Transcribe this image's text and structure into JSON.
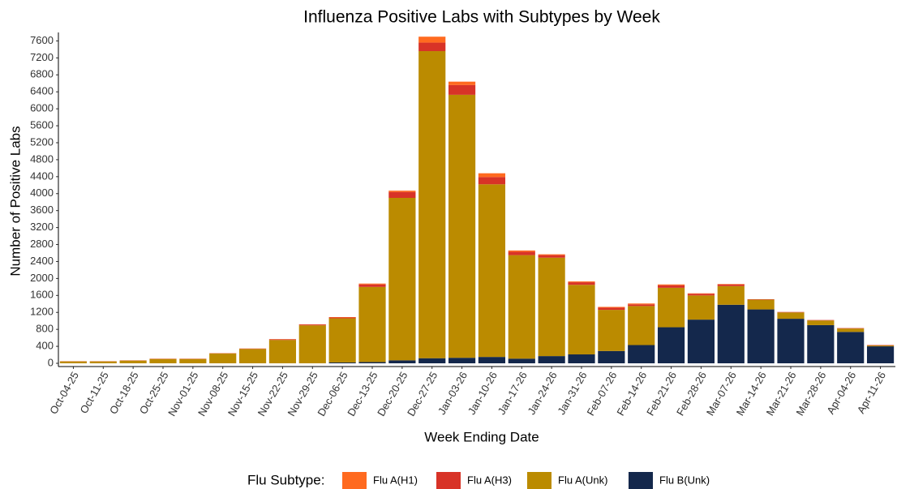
{
  "chart_data": {
    "type": "stacked_bar",
    "title": "Influenza Positive Labs with Subtypes by Week",
    "x_label": "Week Ending Date",
    "y_label": "Number of Positive Labs",
    "legend_title": "Flu Subtype:",
    "legend_position": "bottom",
    "grid": false,
    "categories": [
      "Oct-04-25",
      "Oct-11-25",
      "Oct-18-25",
      "Oct-25-25",
      "Nov-01-25",
      "Nov-08-25",
      "Nov-15-25",
      "Nov-22-25",
      "Nov-29-25",
      "Dec-06-25",
      "Dec-13-25",
      "Dec-20-25",
      "Dec-27-25",
      "Jan-03-26",
      "Jan-10-26",
      "Jan-17-26",
      "Jan-24-26",
      "Jan-31-26",
      "Feb-07-26",
      "Feb-14-26",
      "Feb-21-26",
      "Feb-28-26",
      "Mar-07-26",
      "Mar-14-26",
      "Mar-21-26",
      "Mar-28-26",
      "Apr-04-26",
      "Apr-11-26"
    ],
    "series": [
      {
        "name": "Flu A(H1)",
        "color": "#ff6a1f",
        "values": [
          2,
          2,
          2,
          3,
          3,
          3,
          3,
          5,
          5,
          10,
          20,
          30,
          140,
          80,
          90,
          30,
          20,
          20,
          20,
          20,
          20,
          10,
          10,
          0,
          0,
          0,
          0,
          0
        ]
      },
      {
        "name": "Flu A(H3)",
        "color": "#d83327",
        "values": [
          3,
          3,
          4,
          5,
          5,
          5,
          8,
          15,
          20,
          20,
          60,
          140,
          200,
          230,
          170,
          80,
          60,
          60,
          50,
          40,
          60,
          40,
          40,
          10,
          10,
          10,
          10,
          10
        ]
      },
      {
        "name": "Flu A(Unk)",
        "color": "#bb8b00",
        "values": [
          45,
          45,
          64,
          102,
          102,
          232,
          339,
          550,
          895,
          1040,
          1770,
          3830,
          7240,
          6200,
          4070,
          2440,
          2320,
          1640,
          970,
          920,
          930,
          570,
          440,
          230,
          150,
          110,
          80,
          20
        ]
      },
      {
        "name": "Flu B(Unk)",
        "color": "#14284c",
        "values": [
          0,
          0,
          0,
          0,
          0,
          0,
          0,
          0,
          0,
          20,
          30,
          70,
          120,
          130,
          150,
          110,
          170,
          210,
          290,
          430,
          850,
          1030,
          1380,
          1270,
          1050,
          900,
          740,
          400
        ]
      }
    ],
    "ylim": [
      0,
      7800
    ],
    "yticks": [
      0,
      400,
      800,
      1200,
      1600,
      2000,
      2400,
      2800,
      3200,
      3600,
      4000,
      4400,
      4800,
      5200,
      5600,
      6000,
      6400,
      6800,
      7200,
      7600
    ]
  }
}
